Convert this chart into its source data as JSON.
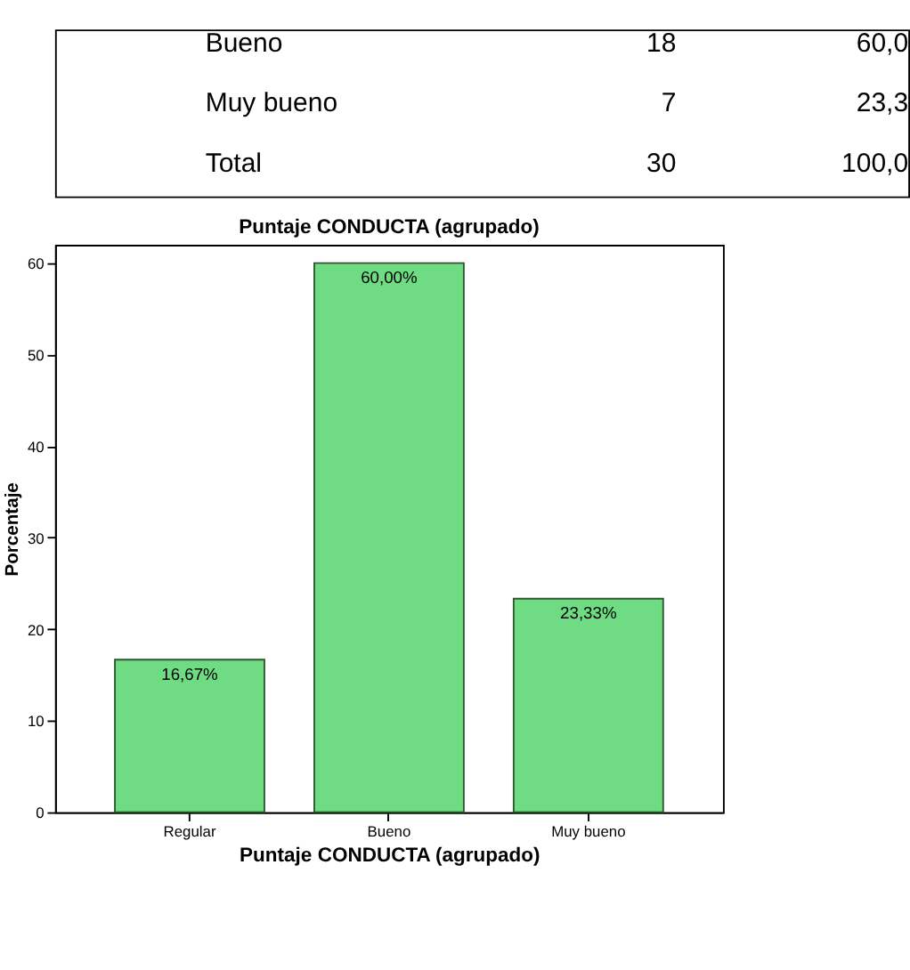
{
  "chart_data": {
    "type": "bar",
    "title": "Puntaje CONDUCTA (agrupado)",
    "xlabel": "Puntaje CONDUCTA (agrupado)",
    "ylabel": "Porcentaje",
    "categories": [
      "Regular",
      "Bueno",
      "Muy bueno"
    ],
    "values": [
      16.67,
      60.0,
      23.33
    ],
    "color": "#6fdc84",
    "value_labels": [
      "16,67%",
      "60,00%",
      "23,33%"
    ],
    "ylim": [
      0,
      62
    ],
    "yticks": [
      0,
      10,
      20,
      30,
      40,
      50,
      60
    ],
    "grid": false,
    "annotations": [
      "Bueno",
      "18",
      "60,0",
      "Muy bueno",
      "7",
      "23,3",
      "Total",
      "30",
      "100,0"
    ]
  }
}
